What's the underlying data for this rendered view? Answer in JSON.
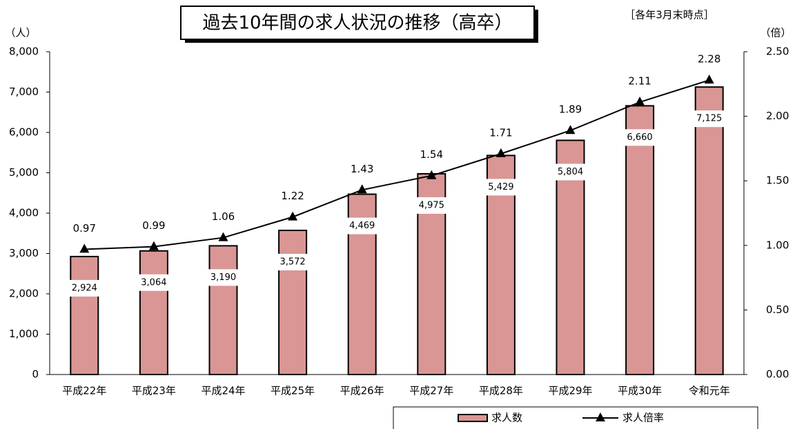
{
  "chart_data": {
    "type": "bar",
    "title": "過去10年間の求人状況の推移（高卒）",
    "subtitle": "［各年3月末時点］",
    "y_label": "（人）",
    "y2_label": "（倍）",
    "categories": [
      "平成22年",
      "平成23年",
      "平成24年",
      "平成25年",
      "平成26年",
      "平成27年",
      "平成28年",
      "平成29年",
      "平成30年",
      "令和元年"
    ],
    "series": [
      {
        "name": "求人数",
        "type": "bar",
        "color": "#d99694",
        "values": [
          2924,
          3064,
          3190,
          3572,
          4469,
          4975,
          5429,
          5804,
          6660,
          7125
        ],
        "value_labels": [
          "2,924",
          "3,064",
          "3,190",
          "3,572",
          "4,469",
          "4,975",
          "5,429",
          "5,804",
          "6,660",
          "7,125"
        ]
      },
      {
        "name": "求人倍率",
        "type": "line",
        "axis": "y2",
        "color": "#000000",
        "values": [
          0.97,
          0.99,
          1.06,
          1.22,
          1.43,
          1.54,
          1.71,
          1.89,
          2.11,
          2.28
        ]
      }
    ],
    "ylim": [
      0,
      8000
    ],
    "yticks": [
      0,
      {
        "value": 1000,
        "label": "1,000"
      },
      {
        "value": 2000,
        "label": "2,000"
      },
      {
        "value": 3000,
        "label": "3,000"
      },
      {
        "value": 4000,
        "label": "4,000"
      },
      {
        "value": 5000,
        "label": "5,000"
      },
      {
        "value": 6000,
        "label": "6,000"
      },
      {
        "value": 7000,
        "label": "7,000"
      },
      {
        "value": 8000,
        "label": "8,000"
      }
    ],
    "y2lim": [
      0,
      2.5
    ],
    "y2ticks": [
      {
        "value": 0,
        "label": "0.00"
      },
      {
        "value": 0.5,
        "label": "0.50"
      },
      {
        "value": 1,
        "label": "1.00"
      },
      {
        "value": 1.5,
        "label": "1.50"
      },
      {
        "value": 2,
        "label": "2.00"
      },
      {
        "value": 2.5,
        "label": "2.50"
      }
    ],
    "grid": false
  }
}
